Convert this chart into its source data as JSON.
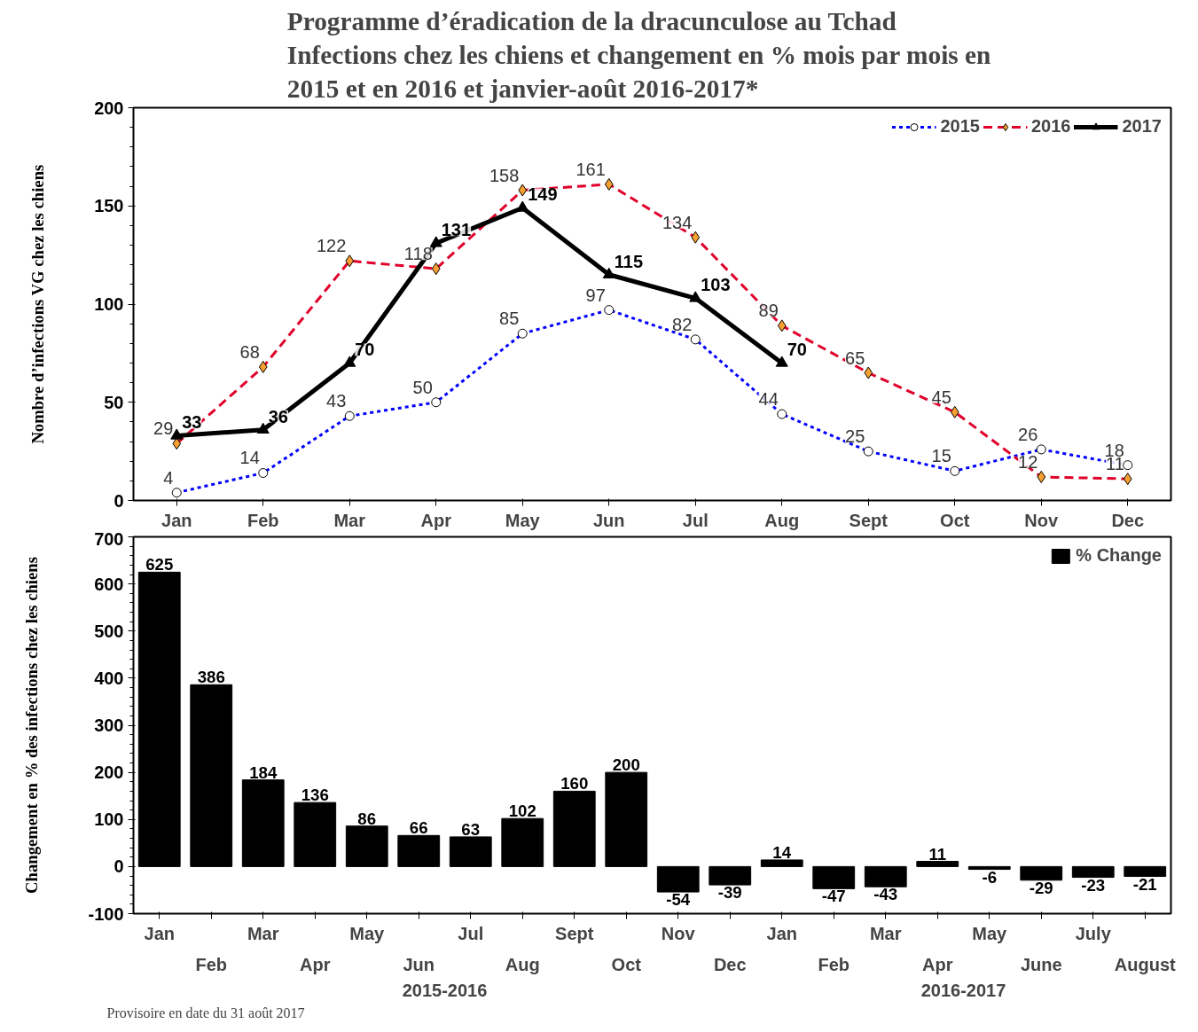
{
  "chart_data": [
    {
      "type": "line",
      "title": "Programme d’éradication  de la dracunculose  au Tchad\nInfections  chez les chiens  et changement  en % mois par mois  en\n2015 et en 2016 et janvier-août  2016-2017*",
      "ylabel": "Nombre d’infections VG chez les chiens",
      "categories": [
        "Jan",
        "Feb",
        "Mar",
        "Apr",
        "May",
        "Jun",
        "Jul",
        "Aug",
        "Sept",
        "Oct",
        "Nov",
        "Dec"
      ],
      "ylim": [
        0,
        200
      ],
      "yticks": [
        0,
        50,
        100,
        150,
        200
      ],
      "grid": false,
      "legend": "top right",
      "data_labels": true,
      "series": [
        {
          "name": "2015",
          "color": "#0000ff",
          "marker": "circle",
          "line_style": "dotted",
          "values": [
            4,
            14,
            43,
            50,
            85,
            97,
            82,
            44,
            25,
            15,
            26,
            18
          ]
        },
        {
          "name": "2016",
          "color": "#e0002a",
          "marker": "diamond",
          "line_style": "dashed",
          "values": [
            29,
            68,
            122,
            118,
            158,
            161,
            134,
            89,
            65,
            45,
            12,
            11
          ]
        },
        {
          "name": "2017",
          "color": "#000000",
          "marker": "triangle",
          "line_style": "solid",
          "values": [
            33,
            36,
            70,
            131,
            149,
            115,
            103,
            70,
            null,
            null,
            null,
            null
          ]
        }
      ]
    },
    {
      "type": "bar",
      "ylabel": "Changement en % des infections chez les chiens",
      "categories": [
        "Jan",
        "Feb",
        "Mar",
        "Apr",
        "May",
        "Jun",
        "Jul",
        "Aug",
        "Sept",
        "Oct",
        "Nov",
        "Dec",
        "Jan",
        "Feb",
        "Mar",
        "Apr",
        "May",
        "June",
        "July",
        "August"
      ],
      "ylim": [
        -100,
        700
      ],
      "yticks": [
        -100,
        0,
        100,
        200,
        300,
        400,
        500,
        600,
        700
      ],
      "grid": false,
      "legend": "top right",
      "data_labels": true,
      "series": [
        {
          "name": "% Change",
          "color": "#000000",
          "values": [
            625,
            386,
            184,
            136,
            86,
            66,
            63,
            102,
            160,
            200,
            -54,
            -39,
            14,
            -47,
            -43,
            11,
            -6,
            -29,
            -23,
            -21
          ]
        }
      ],
      "annotations": [
        "2015-2016",
        "2016-2017",
        "Provisoire en date du 31  août 2017"
      ]
    }
  ]
}
